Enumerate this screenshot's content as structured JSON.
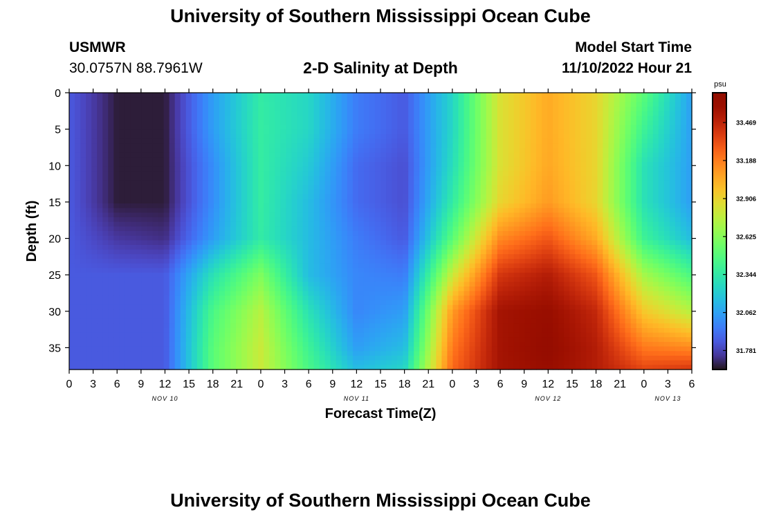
{
  "header": {
    "title": "University of Southern Mississippi Ocean Cube",
    "station_id": "USMWR",
    "coordinates": "30.0757N  88.7961W",
    "plot_title": "2-D Salinity at Depth",
    "model_start_label": "Model Start Time",
    "model_start_value": "11/10/2022 Hour 21"
  },
  "footer": {
    "title": "University of Southern Mississippi Ocean Cube"
  },
  "chart_data": {
    "type": "heatmap",
    "title": "2-D Salinity at Depth",
    "xlabel": "Forecast Time(Z)",
    "ylabel": "Depth (ft)",
    "x_tick_labels": [
      "0",
      "3",
      "6",
      "9",
      "12",
      "15",
      "18",
      "21",
      "0",
      "3",
      "6",
      "9",
      "12",
      "15",
      "18",
      "21",
      "0",
      "3",
      "6",
      "9",
      "12",
      "15",
      "18",
      "21",
      "0",
      "3",
      "6"
    ],
    "x_hours_range": [
      0,
      78
    ],
    "day_labels": [
      {
        "label": "NOV 10",
        "hour": 12
      },
      {
        "label": "NOV 11",
        "hour": 36
      },
      {
        "label": "NOV 12",
        "hour": 60
      },
      {
        "label": "NOV 13",
        "hour": 75
      }
    ],
    "y_ticks": [
      0,
      5,
      10,
      15,
      20,
      25,
      30,
      35
    ],
    "ylim": [
      0,
      38
    ],
    "y_inverted": true,
    "colorbar": {
      "unit": "psu",
      "ticks": [
        31.781,
        32.062,
        32.344,
        32.625,
        32.906,
        33.188,
        33.469
      ],
      "range": [
        31.64,
        33.69
      ],
      "colormap": "turbo"
    },
    "grid_hours": [
      0,
      6,
      12,
      18,
      24,
      30,
      36,
      42,
      48,
      54,
      60,
      66,
      72,
      78
    ],
    "grid_depths": [
      0,
      5,
      10,
      15,
      20,
      25,
      30,
      35,
      38
    ],
    "values": [
      [
        31.85,
        31.66,
        31.66,
        32.05,
        32.35,
        32.25,
        31.95,
        31.85,
        32.25,
        32.85,
        33.05,
        32.9,
        32.5,
        32.05
      ],
      [
        31.85,
        31.66,
        31.66,
        32.05,
        32.36,
        32.25,
        31.95,
        31.85,
        32.25,
        32.85,
        33.05,
        32.9,
        32.4,
        32.05
      ],
      [
        31.85,
        31.66,
        31.66,
        32.0,
        32.36,
        32.2,
        31.9,
        31.82,
        32.28,
        32.85,
        33.06,
        32.9,
        32.3,
        32.05
      ],
      [
        31.85,
        31.66,
        31.66,
        32.0,
        32.36,
        32.15,
        31.9,
        31.82,
        32.35,
        32.9,
        33.1,
        32.9,
        32.3,
        32.05
      ],
      [
        31.85,
        31.75,
        31.72,
        32.05,
        32.35,
        32.15,
        31.95,
        31.85,
        32.5,
        33.15,
        33.3,
        33.05,
        32.4,
        32.15
      ],
      [
        31.85,
        31.85,
        31.85,
        32.3,
        32.6,
        32.15,
        31.98,
        31.95,
        32.8,
        33.4,
        33.5,
        33.3,
        32.7,
        32.45
      ],
      [
        31.85,
        31.85,
        31.85,
        32.45,
        32.75,
        32.3,
        31.98,
        32.05,
        33.1,
        33.55,
        33.6,
        33.45,
        32.95,
        32.75
      ],
      [
        31.85,
        31.85,
        31.85,
        32.5,
        32.8,
        32.4,
        32.05,
        32.15,
        33.2,
        33.55,
        33.62,
        33.5,
        33.2,
        33.15
      ],
      [
        31.85,
        31.85,
        31.85,
        32.5,
        32.8,
        32.45,
        32.15,
        32.25,
        33.25,
        33.55,
        33.6,
        33.5,
        33.35,
        33.4
      ]
    ]
  }
}
